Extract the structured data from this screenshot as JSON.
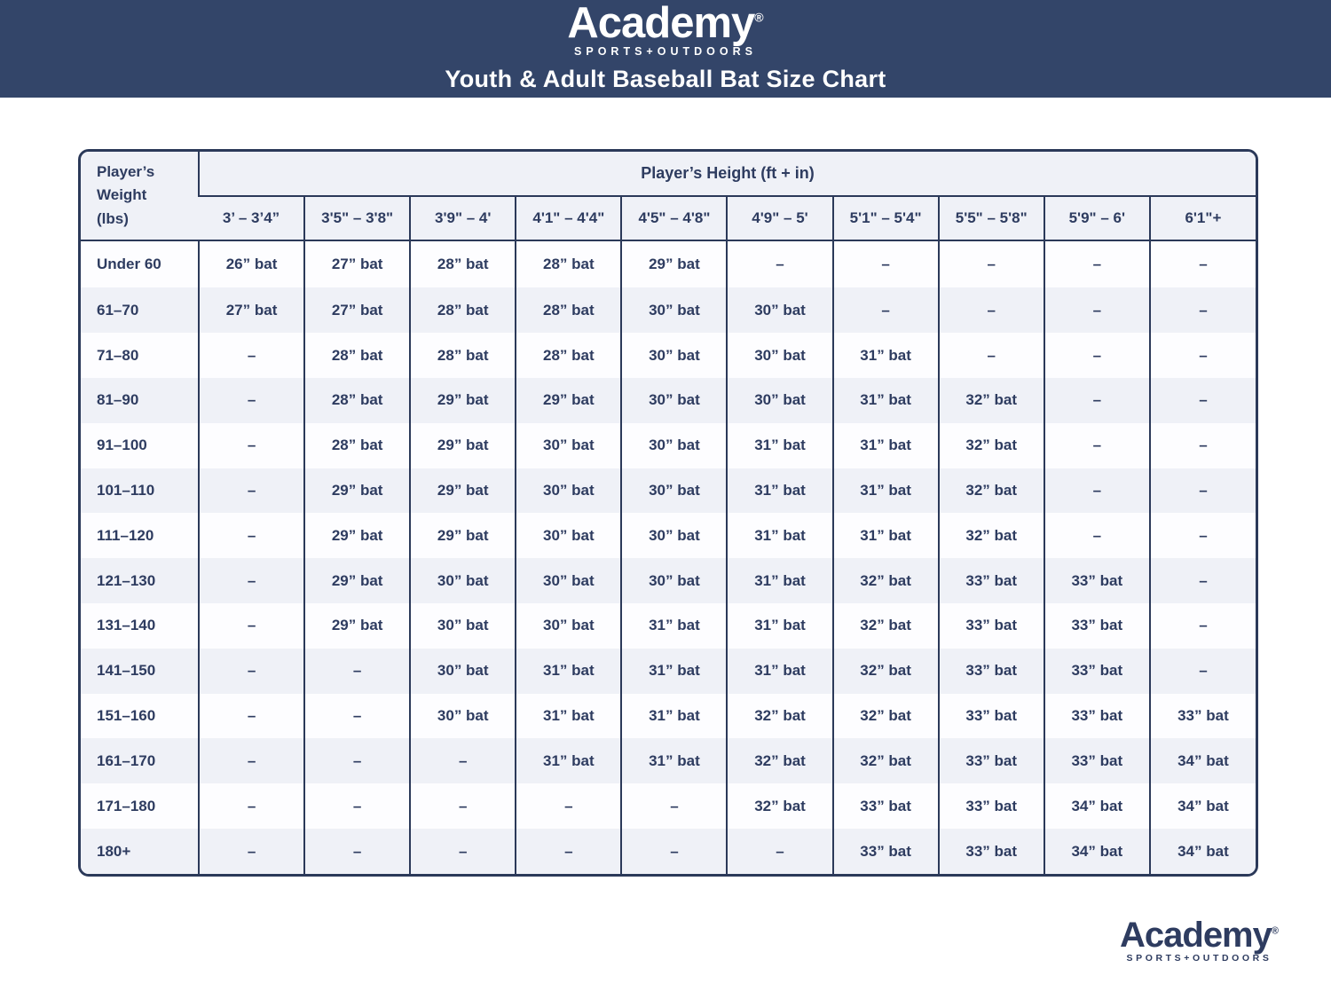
{
  "header": {
    "logo": {
      "brand": "Academy",
      "registered": "®",
      "tagline": "SPORTS+OUTDOORS"
    },
    "title": "Youth & Adult Baseball Bat Size Chart"
  },
  "colors": {
    "band_navy": "#334569",
    "border_navy": "#2B3959",
    "text_navy": "#2E3C60",
    "row_alt_bg": "#EFF1F7"
  },
  "table": {
    "corner_header": "Player’s\nWeight\n(lbs)",
    "height_header": "Player’s Height (ft + in)",
    "height_columns": [
      "3’ – 3’4”",
      "3'5\" – 3'8\"",
      "3'9\" – 4'",
      "4'1\" – 4'4\"",
      "4'5\" – 4'8\"",
      "4'9\" – 5'",
      "5'1\" – 5'4\"",
      "5'5\" – 5'8\"",
      "5'9\" – 6'",
      "6'1\"+"
    ],
    "rows": [
      {
        "weight": "Under 60",
        "cells": [
          "26” bat",
          "27” bat",
          "28” bat",
          "28” bat",
          "29” bat",
          "–",
          "–",
          "–",
          "–",
          "–"
        ]
      },
      {
        "weight": "61–70",
        "cells": [
          "27” bat",
          "27” bat",
          "28” bat",
          "28” bat",
          "30” bat",
          "30” bat",
          "–",
          "–",
          "–",
          "–"
        ]
      },
      {
        "weight": "71–80",
        "cells": [
          "–",
          "28” bat",
          "28” bat",
          "28” bat",
          "30” bat",
          "30” bat",
          "31” bat",
          "–",
          "–",
          "–"
        ]
      },
      {
        "weight": "81–90",
        "cells": [
          "–",
          "28” bat",
          "29” bat",
          "29” bat",
          "30” bat",
          "30” bat",
          "31” bat",
          "32” bat",
          "–",
          "–"
        ]
      },
      {
        "weight": "91–100",
        "cells": [
          "–",
          "28” bat",
          "29” bat",
          "30” bat",
          "30” bat",
          "31” bat",
          "31” bat",
          "32” bat",
          "–",
          "–"
        ]
      },
      {
        "weight": "101–110",
        "cells": [
          "–",
          "29” bat",
          "29” bat",
          "30” bat",
          "30” bat",
          "31” bat",
          "31” bat",
          "32” bat",
          "–",
          "–"
        ]
      },
      {
        "weight": "111–120",
        "cells": [
          "–",
          "29” bat",
          "29” bat",
          "30” bat",
          "30” bat",
          "31” bat",
          "31” bat",
          "32” bat",
          "–",
          "–"
        ]
      },
      {
        "weight": "121–130",
        "cells": [
          "–",
          "29” bat",
          "30” bat",
          "30” bat",
          "30” bat",
          "31” bat",
          "32” bat",
          "33” bat",
          "33” bat",
          "–"
        ]
      },
      {
        "weight": "131–140",
        "cells": [
          "–",
          "29” bat",
          "30” bat",
          "30” bat",
          "31” bat",
          "31” bat",
          "32” bat",
          "33” bat",
          "33” bat",
          "–"
        ]
      },
      {
        "weight": "141–150",
        "cells": [
          "–",
          "–",
          "30” bat",
          "31” bat",
          "31” bat",
          "31” bat",
          "32” bat",
          "33” bat",
          "33” bat",
          "–"
        ]
      },
      {
        "weight": "151–160",
        "cells": [
          "–",
          "–",
          "30” bat",
          "31” bat",
          "31” bat",
          "32” bat",
          "32” bat",
          "33” bat",
          "33” bat",
          "33” bat"
        ]
      },
      {
        "weight": "161–170",
        "cells": [
          "–",
          "–",
          "–",
          "31” bat",
          "31” bat",
          "32” bat",
          "32” bat",
          "33” bat",
          "33” bat",
          "34” bat"
        ]
      },
      {
        "weight": "171–180",
        "cells": [
          "–",
          "–",
          "–",
          "–",
          "–",
          "32” bat",
          "33” bat",
          "33” bat",
          "34” bat",
          "34” bat"
        ]
      },
      {
        "weight": "180+",
        "cells": [
          "–",
          "–",
          "–",
          "–",
          "–",
          "–",
          "33” bat",
          "33” bat",
          "34” bat",
          "34” bat"
        ]
      }
    ]
  },
  "footer": {
    "logo": {
      "brand": "Academy",
      "registered": "®",
      "tagline": "SPORTS+OUTDOORS"
    }
  }
}
